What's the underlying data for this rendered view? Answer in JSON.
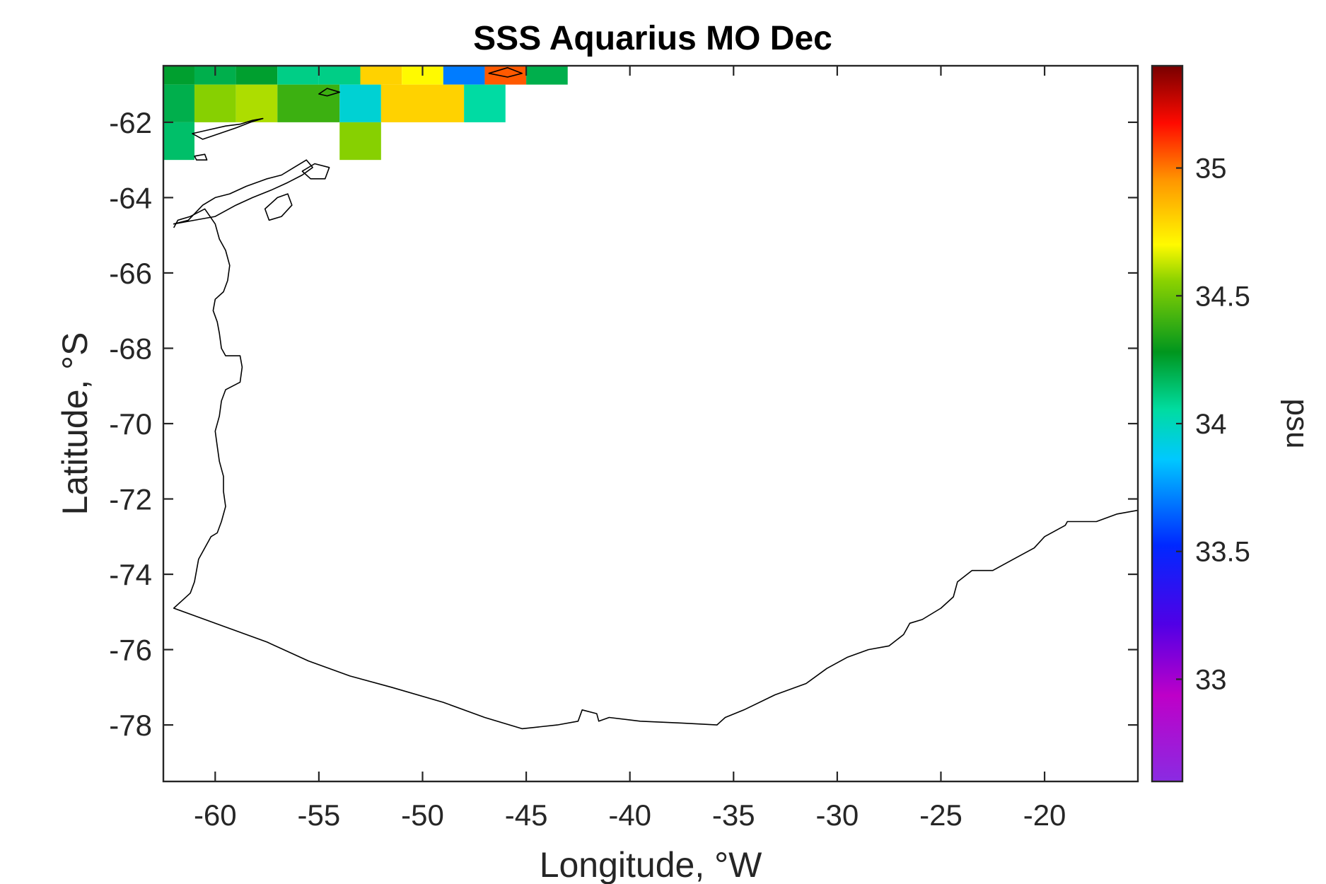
{
  "chart_data": {
    "type": "heatmap",
    "title": "SSS Aquarius MO Dec",
    "xlabel": "Longitude, °W",
    "ylabel": "Latitude, °S",
    "colorbar_label": "psu",
    "xlim": [
      -62.5,
      -15.5
    ],
    "ylim": [
      -79.5,
      -60.5
    ],
    "xticks": [
      -60,
      -55,
      -50,
      -45,
      -40,
      -35,
      -30,
      -25,
      -20
    ],
    "yticks": [
      -78,
      -76,
      -74,
      -72,
      -70,
      -68,
      -66,
      -64,
      -62
    ],
    "colorbar": {
      "range": [
        32.6,
        35.4
      ],
      "ticks": [
        33,
        33.5,
        34,
        34.5,
        35
      ],
      "colormap": "jet-like (purple-blue-cyan-green-yellow-orange-red-darkred)"
    },
    "grid": false,
    "cells": [
      {
        "lon": [
          -62.5,
          -61
        ],
        "lat": [
          -61,
          -60.5
        ],
        "sss": 34.25
      },
      {
        "lon": [
          -61,
          -59
        ],
        "lat": [
          -61,
          -60.5
        ],
        "sss": 34.2
      },
      {
        "lon": [
          -59,
          -57
        ],
        "lat": [
          -61,
          -60.5
        ],
        "sss": 34.25
      },
      {
        "lon": [
          -57,
          -55
        ],
        "lat": [
          -61,
          -60.5
        ],
        "sss": 34.1
      },
      {
        "lon": [
          -55,
          -53
        ],
        "lat": [
          -61,
          -60.5
        ],
        "sss": 34.1
      },
      {
        "lon": [
          -53,
          -51
        ],
        "lat": [
          -61,
          -60.5
        ],
        "sss": 34.8
      },
      {
        "lon": [
          -51,
          -49
        ],
        "lat": [
          -61,
          -60.5
        ],
        "sss": 34.7
      },
      {
        "lon": [
          -49,
          -47
        ],
        "lat": [
          -61,
          -60.5
        ],
        "sss": 33.7
      },
      {
        "lon": [
          -47,
          -45
        ],
        "lat": [
          -61,
          -60.5
        ],
        "sss": 35.05
      },
      {
        "lon": [
          -45,
          -43
        ],
        "lat": [
          -61,
          -60.5
        ],
        "sss": 34.2
      },
      {
        "lon": [
          -62.5,
          -61
        ],
        "lat": [
          -62,
          -61
        ],
        "sss": 34.2
      },
      {
        "lon": [
          -61,
          -59
        ],
        "lat": [
          -62,
          -61
        ],
        "sss": 34.55
      },
      {
        "lon": [
          -59,
          -57
        ],
        "lat": [
          -62,
          -61
        ],
        "sss": 34.6
      },
      {
        "lon": [
          -57,
          -54
        ],
        "lat": [
          -62,
          -61
        ],
        "sss": 34.4
      },
      {
        "lon": [
          -54,
          -52
        ],
        "lat": [
          -62,
          -61
        ],
        "sss": 33.95
      },
      {
        "lon": [
          -52,
          -48
        ],
        "lat": [
          -62,
          -61
        ],
        "sss": 34.8
      },
      {
        "lon": [
          -48,
          -46
        ],
        "lat": [
          -62,
          -61
        ],
        "sss": 34.05
      },
      {
        "lon": [
          -62.5,
          -61
        ],
        "lat": [
          -63,
          -62
        ],
        "sss": 34.15
      },
      {
        "lon": [
          -54,
          -52
        ],
        "lat": [
          -63,
          -62
        ],
        "sss": 34.55
      }
    ],
    "coastline": [
      [
        -62.0,
        -64.8
      ],
      [
        -61.8,
        -64.6
      ],
      [
        -61.2,
        -64.5
      ],
      [
        -60.5,
        -64.3
      ],
      [
        -60.0,
        -64.7
      ],
      [
        -59.8,
        -65.1
      ],
      [
        -59.5,
        -65.4
      ],
      [
        -59.3,
        -65.8
      ],
      [
        -59.4,
        -66.2
      ],
      [
        -59.6,
        -66.5
      ],
      [
        -60.0,
        -66.7
      ],
      [
        -60.1,
        -67.0
      ],
      [
        -59.9,
        -67.3
      ],
      [
        -59.8,
        -67.6
      ],
      [
        -59.7,
        -68.0
      ],
      [
        -59.5,
        -68.2
      ],
      [
        -58.8,
        -68.2
      ],
      [
        -58.7,
        -68.5
      ],
      [
        -58.8,
        -68.9
      ],
      [
        -59.5,
        -69.1
      ],
      [
        -59.7,
        -69.4
      ],
      [
        -59.8,
        -69.8
      ],
      [
        -60.0,
        -70.2
      ],
      [
        -59.9,
        -70.6
      ],
      [
        -59.8,
        -71.0
      ],
      [
        -59.6,
        -71.4
      ],
      [
        -59.6,
        -71.8
      ],
      [
        -59.5,
        -72.2
      ],
      [
        -59.7,
        -72.6
      ],
      [
        -59.9,
        -72.9
      ],
      [
        -60.2,
        -73.0
      ],
      [
        -60.5,
        -73.3
      ],
      [
        -60.8,
        -73.6
      ],
      [
        -60.9,
        -73.9
      ],
      [
        -61.0,
        -74.2
      ],
      [
        -61.2,
        -74.5
      ],
      [
        -61.8,
        -74.8
      ],
      [
        -62.0,
        -74.9
      ],
      [
        -61.0,
        -75.1
      ],
      [
        -59.5,
        -75.4
      ],
      [
        -57.5,
        -75.8
      ],
      [
        -55.5,
        -76.3
      ],
      [
        -53.5,
        -76.7
      ],
      [
        -51.5,
        -77.0
      ],
      [
        -49.0,
        -77.4
      ],
      [
        -47.0,
        -77.8
      ],
      [
        -45.2,
        -78.1
      ],
      [
        -43.5,
        -78.0
      ],
      [
        -42.5,
        -77.9
      ],
      [
        -42.3,
        -77.6
      ],
      [
        -41.6,
        -77.7
      ],
      [
        -41.5,
        -77.9
      ],
      [
        -41.0,
        -77.8
      ],
      [
        -39.5,
        -77.9
      ],
      [
        -37.5,
        -77.95
      ],
      [
        -35.8,
        -78.0
      ],
      [
        -35.4,
        -77.8
      ],
      [
        -34.5,
        -77.6
      ],
      [
        -33.0,
        -77.2
      ],
      [
        -31.5,
        -76.9
      ],
      [
        -30.5,
        -76.5
      ],
      [
        -29.5,
        -76.2
      ],
      [
        -28.5,
        -76.0
      ],
      [
        -27.5,
        -75.9
      ],
      [
        -26.8,
        -75.6
      ],
      [
        -26.5,
        -75.3
      ],
      [
        -25.9,
        -75.2
      ],
      [
        -25.0,
        -74.9
      ],
      [
        -24.4,
        -74.6
      ],
      [
        -24.2,
        -74.2
      ],
      [
        -23.5,
        -73.9
      ],
      [
        -22.5,
        -73.9
      ],
      [
        -21.5,
        -73.6
      ],
      [
        -20.5,
        -73.3
      ],
      [
        -20.0,
        -73.0
      ],
      [
        -19.0,
        -72.7
      ],
      [
        -18.9,
        -72.6
      ],
      [
        -18.0,
        -72.6
      ],
      [
        -17.5,
        -72.6
      ],
      [
        -16.5,
        -72.4
      ],
      [
        -15.5,
        -72.3
      ]
    ],
    "islands": [
      [
        [
          -62.0,
          -64.7
        ],
        [
          -61.3,
          -64.6
        ],
        [
          -60.6,
          -64.2
        ],
        [
          -60.0,
          -64.0
        ],
        [
          -59.3,
          -63.9
        ],
        [
          -58.5,
          -63.7
        ],
        [
          -57.5,
          -63.5
        ],
        [
          -56.8,
          -63.4
        ],
        [
          -56.2,
          -63.2
        ],
        [
          -55.6,
          -63.0
        ],
        [
          -55.3,
          -63.2
        ],
        [
          -55.8,
          -63.4
        ],
        [
          -56.5,
          -63.6
        ],
        [
          -57.3,
          -63.8
        ],
        [
          -58.2,
          -64.0
        ],
        [
          -59.0,
          -64.2
        ],
        [
          -60.0,
          -64.5
        ],
        [
          -61.0,
          -64.6
        ],
        [
          -62.0,
          -64.7
        ]
      ],
      [
        [
          -57.6,
          -64.3
        ],
        [
          -57.0,
          -64.0
        ],
        [
          -56.5,
          -63.9
        ],
        [
          -56.3,
          -64.2
        ],
        [
          -56.8,
          -64.5
        ],
        [
          -57.4,
          -64.6
        ],
        [
          -57.6,
          -64.3
        ]
      ],
      [
        [
          -55.8,
          -63.3
        ],
        [
          -55.2,
          -63.1
        ],
        [
          -54.5,
          -63.2
        ],
        [
          -54.7,
          -63.5
        ],
        [
          -55.4,
          -63.5
        ],
        [
          -55.8,
          -63.3
        ]
      ],
      [
        [
          -61.1,
          -62.3
        ],
        [
          -60.3,
          -62.2
        ],
        [
          -59.5,
          -62.1
        ],
        [
          -58.8,
          -62.05
        ],
        [
          -58.2,
          -61.95
        ],
        [
          -57.7,
          -61.9
        ],
        [
          -58.3,
          -62.0
        ],
        [
          -59.0,
          -62.15
        ],
        [
          -59.8,
          -62.3
        ],
        [
          -60.6,
          -62.45
        ],
        [
          -61.1,
          -62.3
        ]
      ],
      [
        [
          -61.0,
          -62.9
        ],
        [
          -60.5,
          -62.85
        ],
        [
          -60.4,
          -63.0
        ],
        [
          -60.9,
          -63.0
        ],
        [
          -61.0,
          -62.9
        ]
      ],
      [
        [
          -54.0,
          -61.2
        ],
        [
          -54.6,
          -61.1
        ],
        [
          -55.0,
          -61.25
        ],
        [
          -54.6,
          -61.3
        ],
        [
          -54.0,
          -61.2
        ]
      ],
      [
        [
          -46.8,
          -60.7
        ],
        [
          -45.9,
          -60.55
        ],
        [
          -45.2,
          -60.7
        ],
        [
          -45.9,
          -60.8
        ],
        [
          -46.8,
          -60.7
        ]
      ]
    ]
  }
}
